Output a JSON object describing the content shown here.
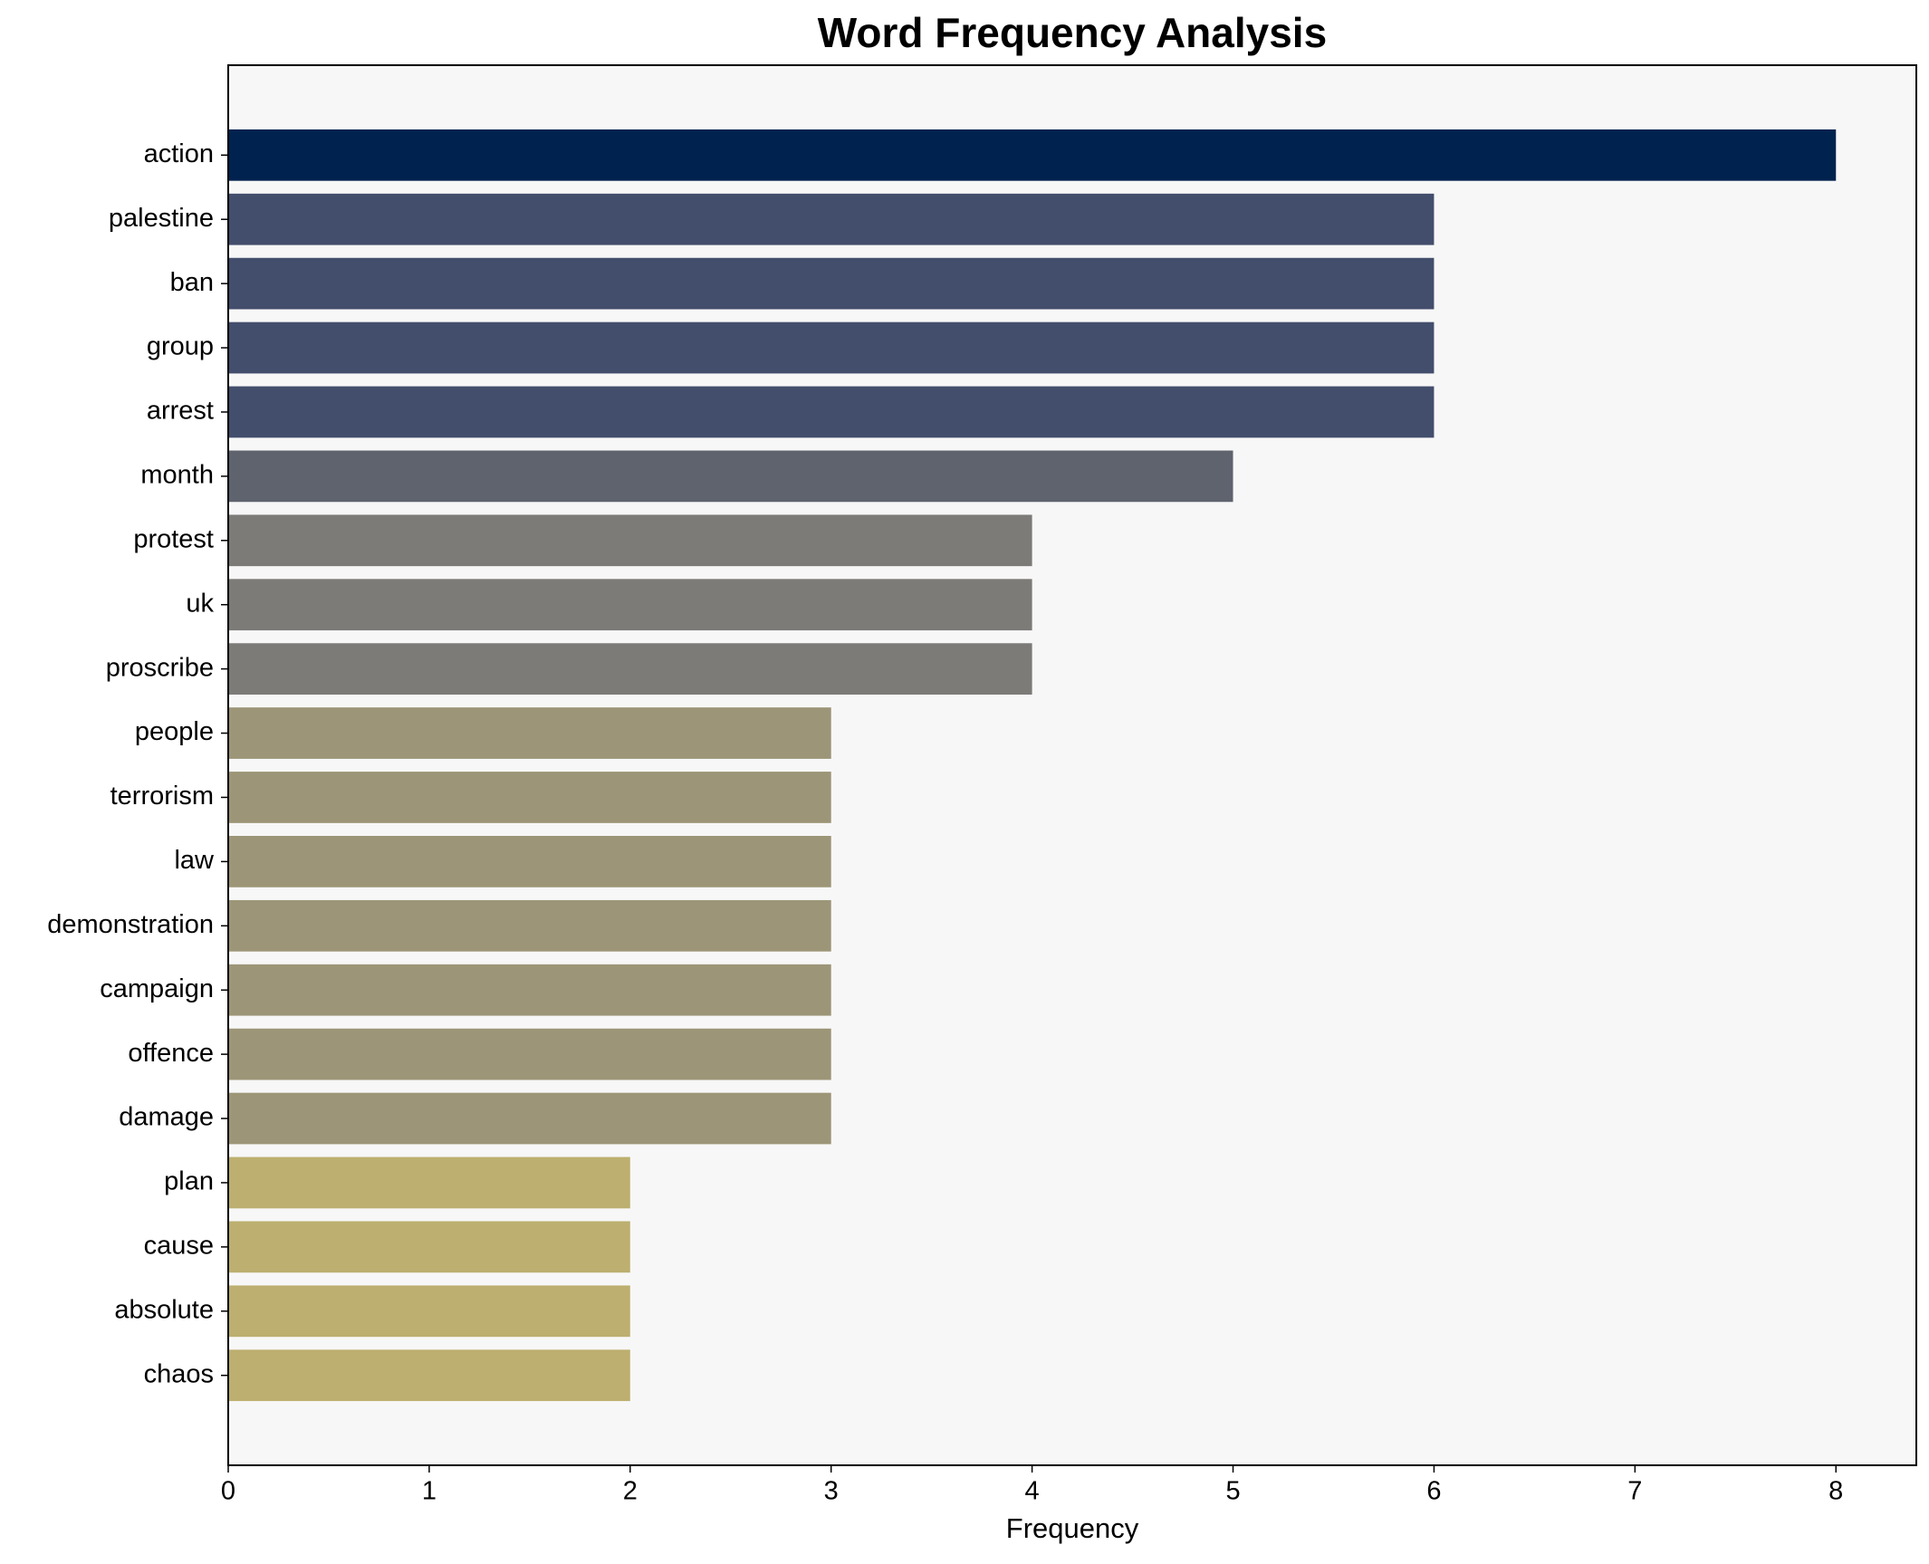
{
  "chart_data": {
    "type": "barh",
    "title": "Word Frequency Analysis",
    "x_label": "Frequency",
    "categories": [
      "action",
      "palestine",
      "ban",
      "group",
      "arrest",
      "month",
      "protest",
      "uk",
      "proscribe",
      "people",
      "terrorism",
      "law",
      "demonstration",
      "campaign",
      "offence",
      "damage",
      "plan",
      "cause",
      "absolute",
      "chaos"
    ],
    "values": [
      8,
      6,
      6,
      6,
      6,
      5,
      4,
      4,
      4,
      3,
      3,
      3,
      3,
      3,
      3,
      3,
      2,
      2,
      2,
      2
    ],
    "colors": [
      "#00224e",
      "#434e6c",
      "#434e6c",
      "#434e6c",
      "#434e6c",
      "#5f636e",
      "#7c7b78",
      "#7c7b78",
      "#7c7b78",
      "#9c9577",
      "#9c9577",
      "#9c9577",
      "#9c9577",
      "#9c9577",
      "#9c9577",
      "#9c9577",
      "#bcaf6f",
      "#bcaf6f",
      "#bcaf6f",
      "#bcaf6f"
    ],
    "xlim": [
      0,
      8.4
    ],
    "xticks": [
      0,
      1,
      2,
      3,
      4,
      5,
      6,
      7,
      8
    ],
    "grid": false,
    "background": "#f7f7f7"
  }
}
